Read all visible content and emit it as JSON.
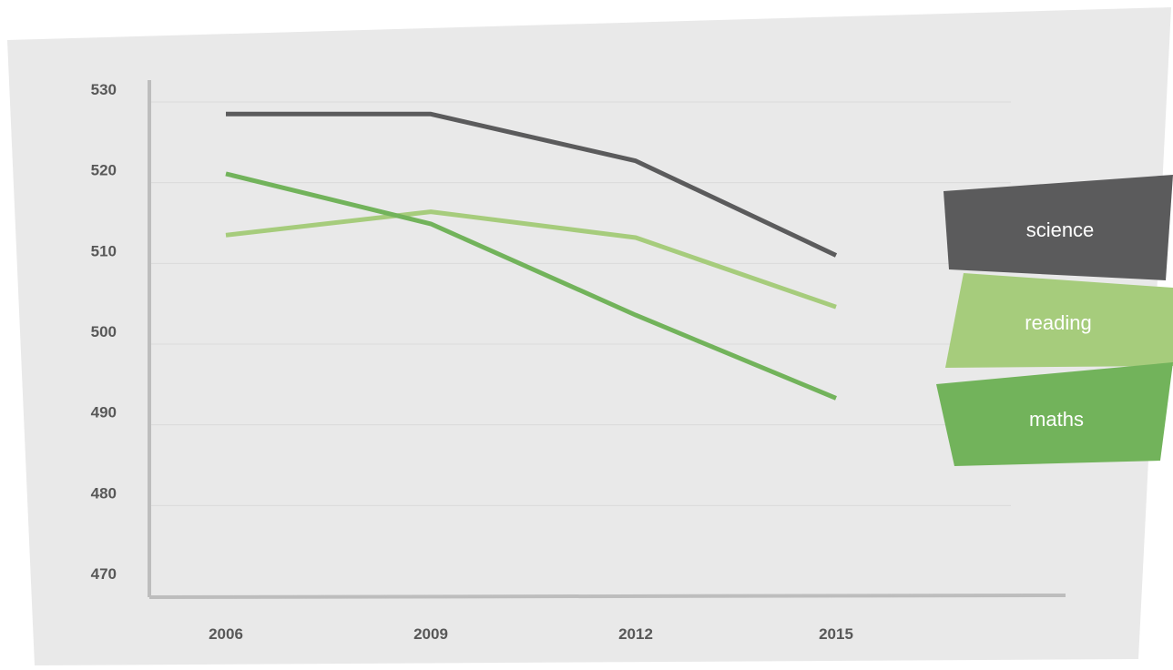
{
  "chart_data": {
    "type": "line",
    "title": "",
    "xlabel": "",
    "ylabel": "",
    "x": [
      2006,
      2009,
      2012,
      2015
    ],
    "x_tick_labels": [
      "2006",
      "2009",
      "2012",
      "2015"
    ],
    "y_tick_labels": [
      "530",
      "520",
      "510",
      "500",
      "490",
      "480",
      "470"
    ],
    "ylim": [
      470,
      530
    ],
    "grid": true,
    "legend_position": "right",
    "series": [
      {
        "name": "science",
        "values": [
          528.5,
          528.5,
          522.7,
          511.0
        ],
        "color": "#5b5b5c"
      },
      {
        "name": "reading",
        "values": [
          513.5,
          516.4,
          513.2,
          504.6
        ],
        "color": "#a6cc7c"
      },
      {
        "name": "maths",
        "values": [
          521.1,
          514.9,
          503.6,
          493.3
        ],
        "color": "#72b35b"
      }
    ]
  },
  "colors": {
    "background_panel": "#e9e9e9",
    "axis": "#bdbdbd",
    "gridline": "#dadada"
  }
}
